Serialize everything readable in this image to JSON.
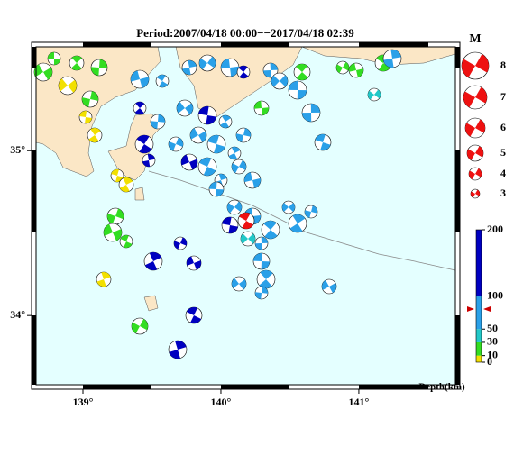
{
  "map": {
    "title": "Period:2007/04/18 00:00−−2017/04/18 02:39",
    "xlim": [
      138.66,
      141.7
    ],
    "ylim": [
      33.58,
      35.63
    ],
    "xticks": [
      {
        "value": 139,
        "label": "139°"
      },
      {
        "value": 140,
        "label": "140°"
      },
      {
        "value": 141,
        "label": "141°"
      }
    ],
    "yticks": [
      {
        "value": 35,
        "label": "35°"
      },
      {
        "value": 34,
        "label": "34°"
      }
    ],
    "magnitude_legend": {
      "title": "M",
      "values": [
        8,
        7,
        6,
        5,
        4,
        3
      ]
    },
    "depth_scale": {
      "label": "Depth(km)",
      "ticks": [
        0,
        10,
        30,
        50,
        100,
        200
      ],
      "colors": [
        "#f2e000",
        "#33dd22",
        "#22c8c8",
        "#2aa0e8",
        "#0000c0"
      ]
    }
  }
}
